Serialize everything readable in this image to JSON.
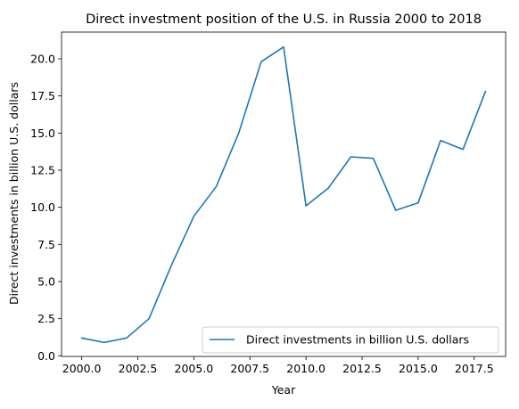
{
  "chart_data": {
    "type": "line",
    "title": "Direct investment position of the U.S. in Russia 2000 to 2018",
    "xlabel": "Year",
    "ylabel": "Direct investments in billion U.S. dollars",
    "xlim": [
      1999.1,
      2018.9
    ],
    "ylim": [
      -0.04,
      21.8
    ],
    "xticks": [
      2000.0,
      2002.5,
      2005.0,
      2007.5,
      2010.0,
      2012.5,
      2015.0,
      2017.5
    ],
    "xtick_labels": [
      "2000.0",
      "2002.5",
      "2005.0",
      "2007.5",
      "2010.0",
      "2012.5",
      "2015.0",
      "2017.5"
    ],
    "yticks": [
      0.0,
      2.5,
      5.0,
      7.5,
      10.0,
      12.5,
      15.0,
      17.5,
      20.0
    ],
    "ytick_labels": [
      "0.0",
      "2.5",
      "5.0",
      "7.5",
      "10.0",
      "12.5",
      "15.0",
      "17.5",
      "20.0"
    ],
    "grid": false,
    "legend_position": "lower-right",
    "series": [
      {
        "name": "Direct investments in billion U.S. dollars",
        "color": "#1f77b4",
        "x": [
          2000,
          2001,
          2002,
          2003,
          2004,
          2005,
          2006,
          2007,
          2008,
          2009,
          2010,
          2011,
          2012,
          2013,
          2014,
          2015,
          2016,
          2017,
          2018
        ],
        "y": [
          1.2,
          0.9,
          1.2,
          2.5,
          6.1,
          9.4,
          11.4,
          15.0,
          19.8,
          20.8,
          10.1,
          11.3,
          13.4,
          13.3,
          9.8,
          10.3,
          14.5,
          13.9,
          17.8
        ]
      }
    ]
  }
}
